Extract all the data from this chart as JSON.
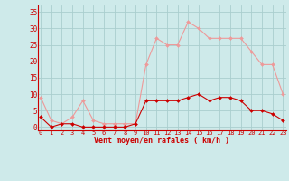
{
  "x": [
    0,
    1,
    2,
    3,
    4,
    5,
    6,
    7,
    8,
    9,
    10,
    11,
    12,
    13,
    14,
    15,
    16,
    17,
    18,
    19,
    20,
    21,
    22,
    23
  ],
  "y_moyen": [
    3,
    0,
    1,
    1,
    0,
    0,
    0,
    0,
    0,
    1,
    8,
    8,
    8,
    8,
    9,
    10,
    8,
    9,
    9,
    8,
    5,
    5,
    4,
    2
  ],
  "y_rafales": [
    9,
    2,
    1,
    3,
    8,
    2,
    1,
    1,
    1,
    1,
    19,
    27,
    25,
    25,
    32,
    30,
    27,
    27,
    27,
    27,
    23,
    19,
    19,
    10
  ],
  "bg_color": "#ceeaea",
  "grid_color": "#aacece",
  "line_color_moyen": "#cc0000",
  "line_color_rafales": "#ee9999",
  "xlabel": "Vent moyen/en rafales ( km/h )",
  "ylim": [
    -1,
    37
  ],
  "xlim": [
    -0.3,
    23.3
  ],
  "yticks": [
    0,
    5,
    10,
    15,
    20,
    25,
    30,
    35
  ],
  "xticks": [
    0,
    1,
    2,
    3,
    4,
    5,
    6,
    7,
    8,
    9,
    10,
    11,
    12,
    13,
    14,
    15,
    16,
    17,
    18,
    19,
    20,
    21,
    22,
    23
  ]
}
